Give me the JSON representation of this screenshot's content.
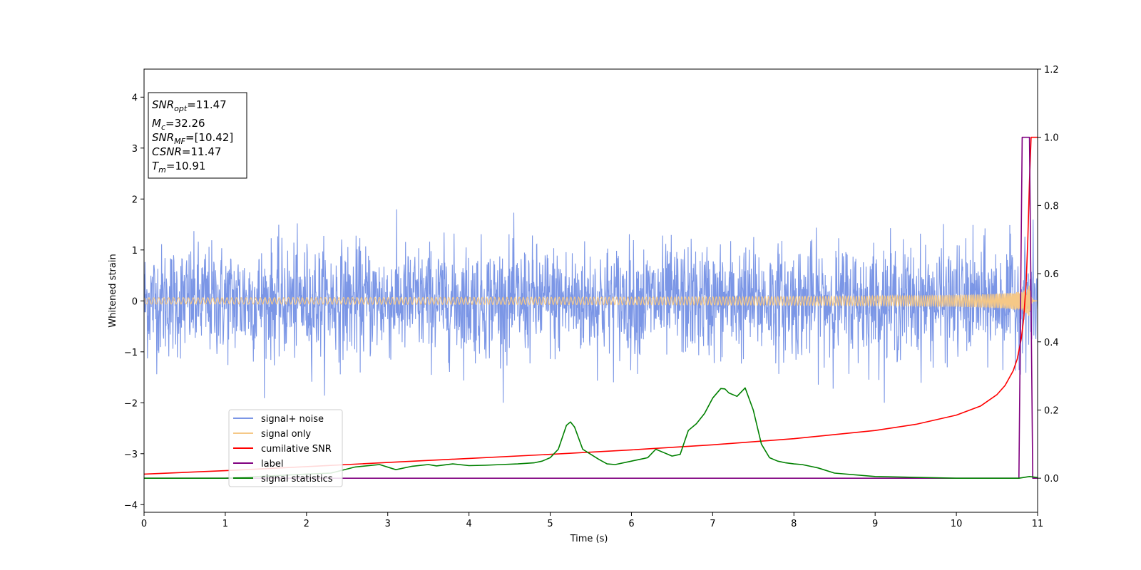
{
  "chart_data": {
    "type": "line",
    "xlabel": "Time (s)",
    "ylabel": "Whitened strain",
    "xlim": [
      0,
      11
    ],
    "ylim": [
      -4.15,
      4.55
    ],
    "ylim_right": [
      -0.1,
      1.2
    ],
    "x_ticks": [
      "0",
      "1",
      "2",
      "3",
      "4",
      "5",
      "6",
      "7",
      "8",
      "9",
      "10",
      "11"
    ],
    "y_ticks_left": [
      "4",
      "3",
      "2",
      "1",
      "0",
      "−1",
      "−2",
      "−3",
      "−4"
    ],
    "y_ticks_right": [
      "1.2",
      "1.0",
      "0.8",
      "0.6",
      "0.4",
      "0.2",
      "0.0"
    ],
    "grid": false,
    "legend_position": "lower-left",
    "info_box": {
      "position": "upper-left",
      "lines": [
        {
          "main": "SNR",
          "sub": "opt",
          "value": "=11.47"
        },
        {
          "main": "M",
          "sub": "c",
          "value": "=32.26"
        },
        {
          "main": "SNR",
          "sub": "MF",
          "value": "=[10.42]"
        },
        {
          "main": "CSNR",
          "sub": "",
          "value": "=11.47"
        },
        {
          "main": "T",
          "sub": "m",
          "value": "=10.91"
        }
      ]
    },
    "series": [
      {
        "name": "signal+ noise",
        "axis": "left",
        "color": "#7b96e6",
        "kind": "noise",
        "envelope_typical_abs": 0.85,
        "peak_max": 1.85,
        "peak_min": -2.0
      },
      {
        "name": "signal only",
        "axis": "left",
        "color": "#f5c887",
        "kind": "chirp",
        "merger_time": 10.91,
        "peak_amplitude": 0.55
      },
      {
        "name": "cumilative SNR",
        "axis": "right",
        "color": "#ff0000",
        "x": [
          0,
          1,
          2,
          3,
          4,
          5,
          6,
          7,
          8,
          9,
          9.5,
          10,
          10.3,
          10.5,
          10.6,
          10.7,
          10.75,
          10.8,
          10.83,
          10.86,
          10.88,
          10.9,
          10.92,
          11
        ],
        "y": [
          0.012,
          0.022,
          0.034,
          0.046,
          0.058,
          0.07,
          0.083,
          0.098,
          0.116,
          0.14,
          0.158,
          0.185,
          0.212,
          0.245,
          0.272,
          0.315,
          0.35,
          0.41,
          0.47,
          0.58,
          0.7,
          0.87,
          1.0,
          1.0
        ]
      },
      {
        "name": "label",
        "axis": "right",
        "color": "#800080",
        "x": [
          0,
          10.77,
          10.81,
          10.9,
          10.94,
          11
        ],
        "y": [
          0.0,
          0.0,
          1.0,
          1.0,
          0.0,
          0.0
        ]
      },
      {
        "name": "signal statistics",
        "axis": "right",
        "color": "#008000",
        "x": [
          0,
          1,
          2,
          2.3,
          2.6,
          2.9,
          3.1,
          3.3,
          3.5,
          3.6,
          3.8,
          4.0,
          4.2,
          4.4,
          4.6,
          4.8,
          4.9,
          5.0,
          5.1,
          5.2,
          5.25,
          5.3,
          5.4,
          5.5,
          5.6,
          5.7,
          5.8,
          6.0,
          6.1,
          6.2,
          6.3,
          6.4,
          6.5,
          6.6,
          6.7,
          6.8,
          6.9,
          7.0,
          7.1,
          7.15,
          7.2,
          7.3,
          7.4,
          7.5,
          7.6,
          7.7,
          7.8,
          7.9,
          8.0,
          8.1,
          8.2,
          8.3,
          8.5,
          9.0,
          10.0,
          10.77,
          10.9,
          11.0
        ],
        "y": [
          0.0,
          0.0,
          0.012,
          0.015,
          0.033,
          0.04,
          0.025,
          0.035,
          0.04,
          0.036,
          0.042,
          0.037,
          0.038,
          0.04,
          0.042,
          0.045,
          0.05,
          0.06,
          0.085,
          0.155,
          0.165,
          0.15,
          0.085,
          0.07,
          0.055,
          0.042,
          0.04,
          0.05,
          0.055,
          0.06,
          0.085,
          0.075,
          0.065,
          0.07,
          0.14,
          0.16,
          0.19,
          0.235,
          0.263,
          0.262,
          0.25,
          0.24,
          0.265,
          0.2,
          0.1,
          0.06,
          0.05,
          0.045,
          0.042,
          0.04,
          0.035,
          0.03,
          0.015,
          0.005,
          0.0,
          0.0,
          0.005,
          0.002
        ]
      }
    ]
  }
}
